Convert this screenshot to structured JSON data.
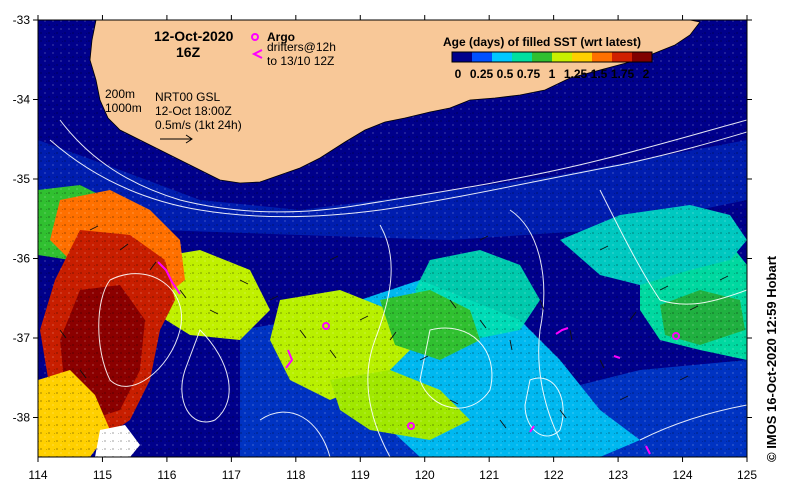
{
  "title": {
    "date": "12-Oct-2020",
    "hour": "16Z"
  },
  "argo_label": "Argo",
  "drifters_label_1": "drifters@12h",
  "drifters_label_2": "to 13/10 12Z",
  "isobath_labels": [
    "200m",
    "1000m"
  ],
  "gsl_lines": [
    "NRT00 GSL",
    "12-Oct 18:00Z",
    "0.5m/s (1kt 24h)"
  ],
  "colorbar": {
    "title": "Age (days) of filled SST (wrt latest)",
    "ticks": [
      "0",
      "0.25",
      "0.5",
      "0.75",
      "1",
      "1.25",
      "1.5",
      "1.75",
      "2"
    ],
    "colors": [
      "#00008b",
      "#0050ff",
      "#00c8ff",
      "#00e0a0",
      "#30c030",
      "#c8f000",
      "#ffd000",
      "#ff7000",
      "#d02000",
      "#800000"
    ]
  },
  "x_axis": {
    "ticks": [
      "114",
      "115",
      "116",
      "117",
      "118",
      "119",
      "120",
      "121",
      "122",
      "123",
      "124",
      "125"
    ]
  },
  "y_axis": {
    "ticks": [
      "-33",
      "-34",
      "-35",
      "-36",
      "-37",
      "-38"
    ]
  },
  "credit": "© IMOS 16-Oct-2020 12:59 Hobart",
  "colors": {
    "land": "#f8c898",
    "ocean_deep": "#00008b",
    "argo_marker": "#ff00ff",
    "contours": "#ffffff"
  }
}
